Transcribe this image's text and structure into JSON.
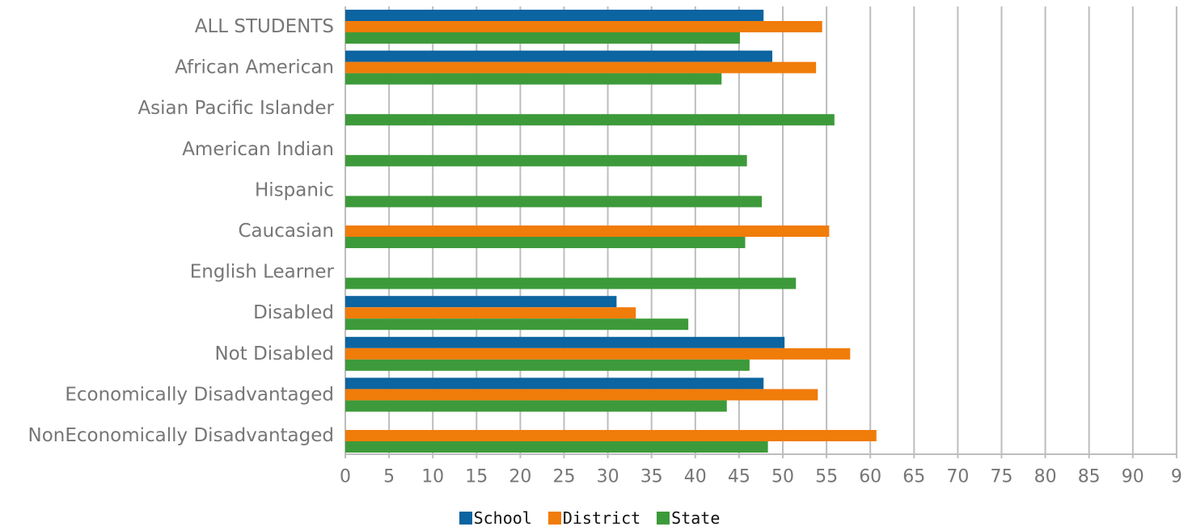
{
  "chart_data": {
    "type": "bar",
    "orientation": "horizontal",
    "categories": [
      "ALL STUDENTS",
      "African American",
      "Asian Pacific Islander",
      "American Indian",
      "Hispanic",
      "Caucasian",
      "English Learner",
      "Disabled",
      "Not Disabled",
      "Economically Disadvantaged",
      "NonEconomically Disadvantaged"
    ],
    "series": [
      {
        "name": "School",
        "color": "#0c64a0",
        "values": [
          47.8,
          48.8,
          null,
          null,
          null,
          null,
          null,
          31.0,
          50.2,
          47.8,
          null
        ]
      },
      {
        "name": "District",
        "color": "#f07c0a",
        "values": [
          54.5,
          53.8,
          null,
          null,
          null,
          55.3,
          null,
          33.2,
          57.7,
          54.0,
          60.7
        ]
      },
      {
        "name": "State",
        "color": "#3d9a3a",
        "values": [
          45.1,
          43.0,
          55.9,
          45.9,
          47.6,
          45.7,
          51.5,
          39.2,
          46.2,
          43.6,
          48.3
        ]
      }
    ],
    "xlim": [
      0,
      95
    ],
    "xticks": [
      "0",
      "5",
      "10",
      "15",
      "20",
      "25",
      "30",
      "35",
      "40",
      "45",
      "50",
      "55",
      "60",
      "65",
      "70",
      "75",
      "80",
      "85",
      "90",
      "9"
    ],
    "xlabel": "",
    "ylabel": "",
    "title": "",
    "grid": true,
    "legend_position": "bottom"
  }
}
